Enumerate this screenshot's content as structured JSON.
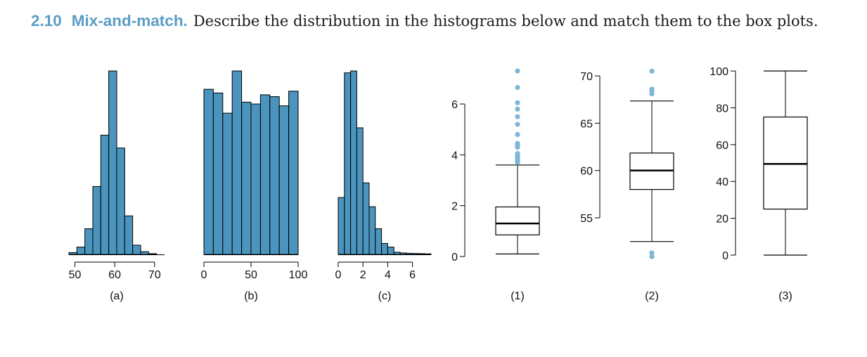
{
  "exercise": {
    "number": "2.10",
    "title": "Mix-and-match.",
    "prompt": "Describe the distribution in the histograms below and match them to the box plots."
  },
  "colors": {
    "bar_fill": "#4a94bd",
    "outlier": "#7fb6d6",
    "stroke": "#000000"
  },
  "chart_data": [
    {
      "type": "histogram",
      "panel": "(a)",
      "bin_edges": [
        48.5,
        50.5,
        52.5,
        54.5,
        56.5,
        58.5,
        60.5,
        62.5,
        64.5,
        66.5,
        68.5,
        70.5,
        72.5
      ],
      "heights": [
        0.01,
        0.04,
        0.14,
        0.37,
        0.65,
        1.0,
        0.58,
        0.21,
        0.05,
        0.015,
        0.004,
        0.0
      ],
      "xticks": [
        50,
        60,
        70
      ],
      "xlim": [
        48.5,
        72.5
      ]
    },
    {
      "type": "histogram",
      "panel": "(b)",
      "bin_edges": [
        0,
        10,
        20,
        30,
        40,
        50,
        60,
        70,
        80,
        90,
        100
      ],
      "heights": [
        0.9,
        0.88,
        0.77,
        1.0,
        0.83,
        0.82,
        0.87,
        0.86,
        0.81,
        0.89
      ],
      "xticks": [
        0,
        50,
        100
      ],
      "xlim": [
        0,
        100
      ]
    },
    {
      "type": "histogram",
      "panel": "(c)",
      "bin_edges": [
        0,
        0.5,
        1,
        1.5,
        2,
        2.5,
        3,
        3.5,
        4,
        4.5,
        5,
        5.5,
        6,
        6.5,
        7,
        7.5
      ],
      "heights": [
        0.31,
        0.99,
        1.0,
        0.69,
        0.39,
        0.26,
        0.14,
        0.06,
        0.04,
        0.012,
        0.008,
        0.006,
        0.005,
        0.004,
        0.003
      ],
      "xticks": [
        0,
        2,
        4,
        6
      ],
      "xlim": [
        0,
        7.5
      ]
    },
    {
      "type": "boxplot",
      "panel": "(1)",
      "ylim": [
        0,
        6.5
      ],
      "yticks": [
        0,
        2,
        4,
        6
      ],
      "whisker_low": 0.1,
      "q1": 0.85,
      "median": 1.3,
      "q3": 1.95,
      "whisker_high": 3.6,
      "outliers": [
        3.7,
        3.75,
        3.8,
        3.85,
        3.9,
        3.95,
        4.0,
        4.05,
        4.3,
        4.4,
        4.45,
        4.8,
        5.2,
        5.5,
        5.8,
        6.05,
        6.65,
        7.3
      ]
    },
    {
      "type": "boxplot",
      "panel": "(2)",
      "ylim": [
        55,
        70
      ],
      "yticks": [
        55,
        60,
        65,
        70
      ],
      "whisker_low": 52.5,
      "q1": 58,
      "median": 60,
      "q3": 61.85,
      "whisker_high": 67.35,
      "outliers": [
        51.3,
        50.9,
        68.1,
        68.4,
        68.6,
        70.5
      ]
    },
    {
      "type": "boxplot",
      "panel": "(3)",
      "ylim": [
        0,
        100
      ],
      "yticks": [
        0,
        20,
        40,
        60,
        80,
        100
      ],
      "whisker_low": 0,
      "q1": 25,
      "median": 49.5,
      "q3": 75,
      "whisker_high": 100,
      "outliers": []
    }
  ]
}
